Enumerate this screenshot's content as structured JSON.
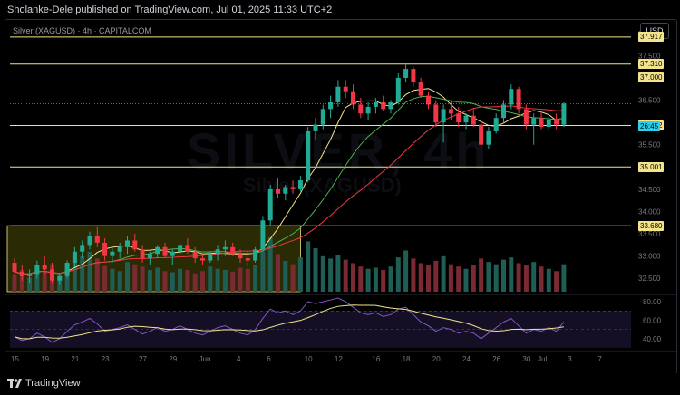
{
  "header": {
    "published": "Sholanke-Dele published on TradingView.com, Jul 01, 2025 11:33 UTC+2"
  },
  "symbol": {
    "line": "Silver (XAGUSD) · 4h · CAPITALCOM",
    "currency": "USD",
    "watermark": "SILVER, 4h",
    "watermark_sub": "Silver (XAGUSD)"
  },
  "footer": {
    "brand": "TradingView"
  },
  "colors": {
    "up": "#22ab94",
    "down": "#f23645",
    "level": "#f3e48c",
    "ma_fast": "#f3e48c",
    "ma_mid": "#4caf50",
    "ma_slow": "#f23645",
    "rsi": "#7e57c2",
    "rsi_ma": "#f3e48c"
  },
  "chart_data": {
    "type": "candlestick",
    "price_axis": {
      "min": 32.2,
      "max": 38.3,
      "ticks": [
        32.5,
        33.0,
        33.5,
        34.0,
        34.5,
        35.0,
        35.5,
        36.0,
        36.5,
        37.0,
        37.5,
        38.0
      ],
      "tick_labels": [
        "32.500",
        "33.000",
        "33.500",
        "34.000",
        "34.500",
        "35.000",
        "35.500",
        "36.000",
        "36.500",
        "37.000",
        "37.500",
        "38.000"
      ]
    },
    "horizontal_levels": [
      {
        "value": 37.917,
        "label": "37.917"
      },
      {
        "value": 37.31,
        "label": "37.310"
      },
      {
        "value": 35.932,
        "label": "35.932"
      },
      {
        "value": 35.001,
        "label": "35.001"
      },
      {
        "value": 33.68,
        "label": "33.680"
      }
    ],
    "level_37": {
      "value": 37.0,
      "label": "37.000"
    },
    "current_price": {
      "value": 36.42,
      "countdown": "26:45"
    },
    "zone": {
      "from_x": 0,
      "to_x": 38,
      "low": 32.2,
      "high": 33.68
    },
    "x_labels": [
      {
        "x": 0,
        "label": "15"
      },
      {
        "x": 4,
        "label": "19"
      },
      {
        "x": 8,
        "label": "21"
      },
      {
        "x": 12,
        "label": "23"
      },
      {
        "x": 17,
        "label": "27"
      },
      {
        "x": 21,
        "label": "29"
      },
      {
        "x": 25,
        "label": "Jun"
      },
      {
        "x": 30,
        "label": "4"
      },
      {
        "x": 34,
        "label": "6"
      },
      {
        "x": 39,
        "label": "10"
      },
      {
        "x": 43,
        "label": "12"
      },
      {
        "x": 48,
        "label": "16"
      },
      {
        "x": 52,
        "label": "18"
      },
      {
        "x": 56,
        "label": "20"
      },
      {
        "x": 60,
        "label": "24"
      },
      {
        "x": 64,
        "label": "26"
      },
      {
        "x": 68,
        "label": "30"
      },
      {
        "x": 70,
        "label": "Jul"
      },
      {
        "x": 74,
        "label": "3"
      },
      {
        "x": 78,
        "label": "7"
      }
    ],
    "ohlc": [
      [
        32.85,
        32.95,
        32.55,
        32.65
      ],
      [
        32.65,
        32.8,
        32.45,
        32.55
      ],
      [
        32.55,
        32.7,
        32.4,
        32.6
      ],
      [
        32.6,
        32.9,
        32.5,
        32.8
      ],
      [
        32.8,
        33.0,
        32.6,
        32.7
      ],
      [
        32.7,
        32.85,
        32.4,
        32.45
      ],
      [
        32.45,
        32.6,
        32.35,
        32.55
      ],
      [
        32.55,
        32.9,
        32.5,
        32.85
      ],
      [
        32.85,
        33.2,
        32.75,
        33.1
      ],
      [
        33.1,
        33.35,
        32.95,
        33.25
      ],
      [
        33.25,
        33.55,
        33.15,
        33.45
      ],
      [
        33.45,
        33.65,
        33.2,
        33.3
      ],
      [
        33.3,
        33.4,
        32.9,
        33.0
      ],
      [
        33.0,
        33.2,
        32.85,
        33.1
      ],
      [
        33.1,
        33.3,
        32.95,
        33.2
      ],
      [
        33.2,
        33.45,
        33.05,
        33.35
      ],
      [
        33.35,
        33.5,
        33.1,
        33.15
      ],
      [
        33.15,
        33.25,
        32.85,
        32.95
      ],
      [
        32.95,
        33.1,
        32.8,
        33.05
      ],
      [
        33.05,
        33.25,
        32.95,
        33.2
      ],
      [
        33.2,
        33.3,
        32.95,
        33.0
      ],
      [
        33.0,
        33.15,
        32.8,
        33.1
      ],
      [
        33.1,
        33.3,
        33.0,
        33.25
      ],
      [
        33.25,
        33.4,
        33.05,
        33.1
      ],
      [
        33.1,
        33.2,
        32.85,
        32.95
      ],
      [
        32.95,
        33.05,
        32.8,
        32.9
      ],
      [
        32.9,
        33.1,
        32.85,
        33.05
      ],
      [
        33.05,
        33.25,
        32.9,
        33.15
      ],
      [
        33.15,
        33.35,
        33.0,
        33.2
      ],
      [
        33.2,
        33.3,
        33.0,
        33.05
      ],
      [
        33.05,
        33.15,
        32.85,
        32.95
      ],
      [
        32.95,
        33.1,
        32.75,
        32.9
      ],
      [
        32.9,
        33.2,
        32.85,
        33.15
      ],
      [
        33.15,
        33.9,
        33.1,
        33.8
      ],
      [
        33.8,
        34.6,
        33.7,
        34.5
      ],
      [
        34.5,
        34.75,
        34.3,
        34.4
      ],
      [
        34.4,
        34.6,
        34.25,
        34.55
      ],
      [
        34.55,
        34.7,
        34.4,
        34.5
      ],
      [
        34.5,
        34.8,
        34.45,
        34.7
      ],
      [
        34.7,
        35.9,
        34.65,
        35.8
      ],
      [
        35.8,
        36.1,
        35.6,
        35.95
      ],
      [
        35.95,
        36.4,
        35.85,
        36.3
      ],
      [
        36.3,
        36.6,
        36.1,
        36.45
      ],
      [
        36.45,
        36.95,
        36.35,
        36.8
      ],
      [
        36.8,
        36.95,
        36.55,
        36.7
      ],
      [
        36.7,
        36.85,
        36.3,
        36.4
      ],
      [
        36.4,
        36.55,
        36.1,
        36.2
      ],
      [
        36.2,
        36.45,
        36.05,
        36.35
      ],
      [
        36.35,
        36.55,
        36.2,
        36.45
      ],
      [
        36.45,
        36.6,
        36.25,
        36.3
      ],
      [
        36.3,
        36.5,
        36.2,
        36.45
      ],
      [
        36.45,
        37.1,
        36.4,
        37.0
      ],
      [
        37.0,
        37.3,
        36.9,
        37.2
      ],
      [
        37.2,
        37.25,
        36.8,
        36.9
      ],
      [
        36.9,
        37.0,
        36.55,
        36.6
      ],
      [
        36.6,
        36.7,
        36.3,
        36.4
      ],
      [
        36.4,
        36.5,
        35.9,
        36.0
      ],
      [
        36.0,
        36.4,
        35.55,
        36.3
      ],
      [
        36.3,
        36.5,
        36.05,
        36.2
      ],
      [
        36.2,
        36.35,
        35.9,
        36.0
      ],
      [
        36.0,
        36.2,
        35.85,
        36.15
      ],
      [
        36.15,
        36.3,
        35.9,
        35.95
      ],
      [
        35.95,
        36.05,
        35.4,
        35.5
      ],
      [
        35.5,
        35.9,
        35.4,
        35.8
      ],
      [
        35.8,
        36.2,
        35.75,
        36.1
      ],
      [
        36.1,
        36.5,
        36.0,
        36.4
      ],
      [
        36.4,
        36.85,
        36.3,
        36.75
      ],
      [
        36.75,
        36.8,
        36.2,
        36.3
      ],
      [
        36.3,
        36.4,
        35.85,
        35.95
      ],
      [
        35.95,
        36.2,
        35.5,
        36.1
      ],
      [
        36.1,
        36.25,
        35.85,
        35.9
      ],
      [
        35.9,
        36.15,
        35.8,
        36.05
      ],
      [
        36.05,
        36.2,
        35.85,
        35.95
      ],
      [
        35.95,
        36.45,
        35.9,
        36.42
      ]
    ],
    "volume": [
      30,
      38,
      25,
      42,
      35,
      48,
      28,
      40,
      55,
      62,
      70,
      58,
      45,
      40,
      36,
      52,
      48,
      44,
      38,
      42,
      36,
      34,
      40,
      38,
      32,
      36,
      44,
      40,
      38,
      35,
      42,
      40,
      46,
      70,
      95,
      66,
      54,
      48,
      60,
      88,
      76,
      62,
      58,
      64,
      56,
      50,
      44,
      40,
      42,
      38,
      44,
      60,
      72,
      58,
      50,
      46,
      54,
      62,
      48,
      44,
      40,
      46,
      58,
      52,
      48,
      56,
      60,
      50,
      46,
      52,
      44,
      40,
      36,
      48
    ],
    "rsi": {
      "min": 30,
      "max": 85,
      "ticks": [
        40,
        60,
        80
      ],
      "tick_labels": [
        "40.00",
        "60.00",
        "80.00"
      ],
      "values": [
        42,
        38,
        40,
        46,
        42,
        36,
        40,
        48,
        55,
        58,
        62,
        56,
        48,
        50,
        52,
        55,
        50,
        45,
        48,
        52,
        48,
        50,
        54,
        50,
        46,
        44,
        48,
        52,
        54,
        50,
        46,
        44,
        50,
        62,
        72,
        68,
        70,
        66,
        70,
        80,
        78,
        80,
        82,
        84,
        80,
        74,
        68,
        66,
        68,
        64,
        66,
        72,
        74,
        66,
        58,
        54,
        48,
        52,
        50,
        46,
        48,
        46,
        40,
        46,
        52,
        58,
        62,
        54,
        46,
        50,
        48,
        52,
        48,
        58
      ]
    }
  }
}
